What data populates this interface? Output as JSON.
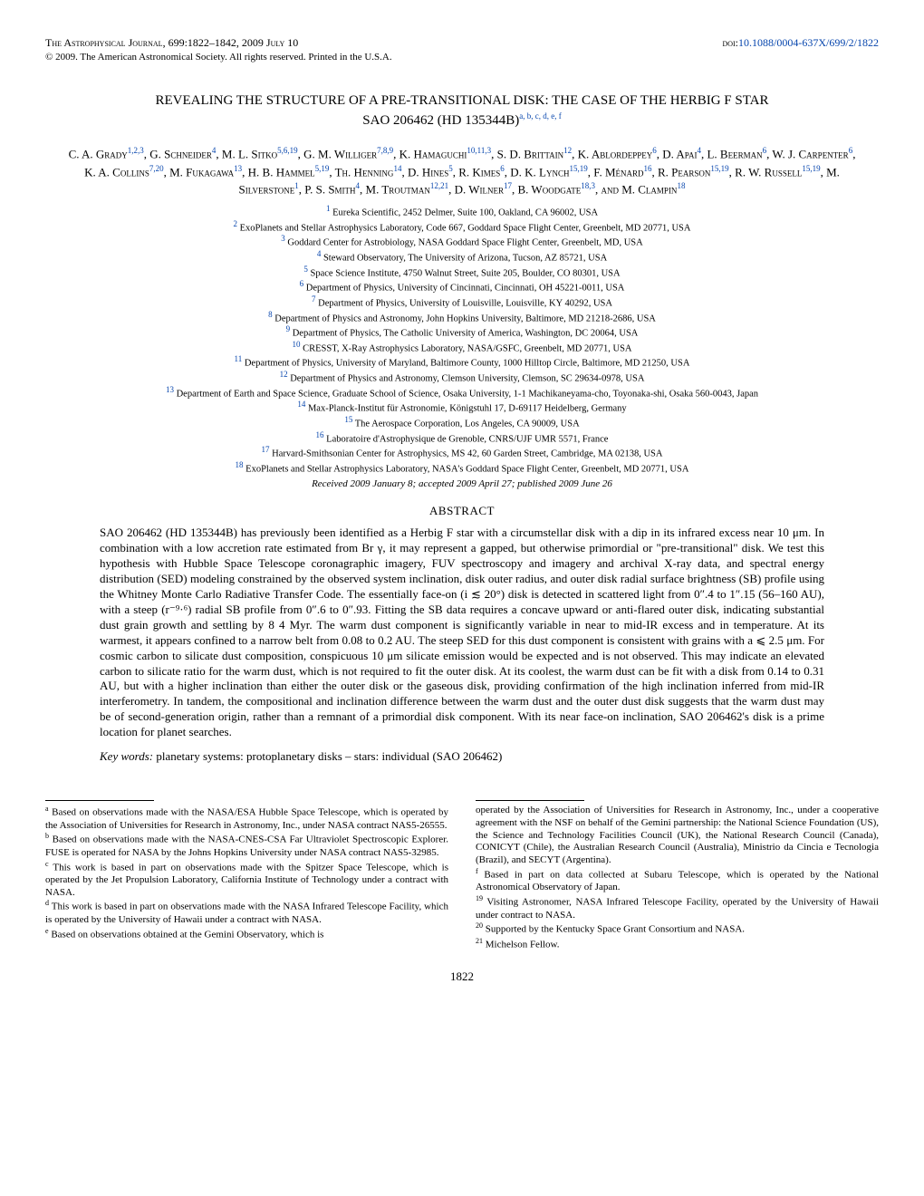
{
  "header": {
    "journal": "The Astrophysical Journal",
    "citation": ", 699:1822–1842, 2009 July 10",
    "doi_label": "doi:",
    "doi": "10.1088/0004-637X/699/2/1822",
    "copyright": "© 2009. The American Astronomical Society. All rights reserved. Printed in the U.S.A."
  },
  "title_l1": "REVEALING THE STRUCTURE OF A PRE-TRANSITIONAL DISK: THE CASE OF THE HERBIG F STAR",
  "title_l2": "SAO 206462 (HD 135344B)",
  "title_sup": "a, b, c, d, e, f",
  "authors_html": "C. A. Grady<sup class='sup'>1,2,3</sup>, G. Schneider<sup class='sup'>4</sup>, M. L. Sitko<sup class='sup'>5,6,19</sup>, G. M. Williger<sup class='sup'>7,8,9</sup>, K. Hamaguchi<sup class='sup'>10,11,3</sup>, S. D. Brittain<sup class='sup'>12</sup>, K. Ablordeppey<sup class='sup'>6</sup>, D. Apai<sup class='sup'>4</sup>, L. Beerman<sup class='sup'>6</sup>, W. J. Carpenter<sup class='sup'>6</sup>, K. A. Collins<sup class='sup'>7,20</sup>, M. Fukagawa<sup class='sup'>13</sup>, H. B. Hammel<sup class='sup'>5,19</sup>, Th. Henning<sup class='sup'>14</sup>, D. Hines<sup class='sup'>5</sup>, R. Kimes<sup class='sup'>6</sup>, D. K. Lynch<sup class='sup'>15,19</sup>, F. Ménard<sup class='sup'>16</sup>, R. Pearson<sup class='sup'>15,19</sup>, R. W. Russell<sup class='sup'>15,19</sup>, M. Silverstone<sup class='sup'>1</sup>, P. S. Smith<sup class='sup'>4</sup>, M. Troutman<sup class='sup'>12,21</sup>, D. Wilner<sup class='sup'>17</sup>, B. Woodgate<sup class='sup'>18,3</sup>, <span style='font-variant:small-caps'>and</span> M. Clampin<sup class='sup'>18</sup>",
  "affiliations": [
    "1 Eureka Scientific, 2452 Delmer, Suite 100, Oakland, CA 96002, USA",
    "2 ExoPlanets and Stellar Astrophysics Laboratory, Code 667, Goddard Space Flight Center, Greenbelt, MD 20771, USA",
    "3 Goddard Center for Astrobiology, NASA Goddard Space Flight Center, Greenbelt, MD, USA",
    "4 Steward Observatory, The University of Arizona, Tucson, AZ 85721, USA",
    "5 Space Science Institute, 4750 Walnut Street, Suite 205, Boulder, CO 80301, USA",
    "6 Department of Physics, University of Cincinnati, Cincinnati, OH 45221-0011, USA",
    "7 Department of Physics, University of Louisville, Louisville, KY 40292, USA",
    "8 Department of Physics and Astronomy, John Hopkins University, Baltimore, MD 21218-2686, USA",
    "9 Department of Physics, The Catholic University of America, Washington, DC 20064, USA",
    "10 CRESST, X-Ray Astrophysics Laboratory, NASA/GSFC, Greenbelt, MD 20771, USA",
    "11 Department of Physics, University of Maryland, Baltimore County, 1000 Hilltop Circle, Baltimore, MD 21250, USA",
    "12 Department of Physics and Astronomy, Clemson University, Clemson, SC 29634-0978, USA",
    "13 Department of Earth and Space Science, Graduate School of Science, Osaka University, 1-1 Machikaneyama-cho, Toyonaka-shi, Osaka 560-0043, Japan",
    "14 Max-Planck-Institut für Astronomie, Königstuhl 17, D-69117 Heidelberg, Germany",
    "15 The Aerospace Corporation, Los Angeles, CA 90009, USA",
    "16 Laboratoire d'Astrophysique de Grenoble, CNRS/UJF UMR 5571, France",
    "17 Harvard-Smithsonian Center for Astrophysics, MS 42, 60 Garden Street, Cambridge, MA 02138, USA",
    "18 ExoPlanets and Stellar Astrophysics Laboratory, NASA's Goddard Space Flight Center, Greenbelt, MD 20771, USA"
  ],
  "received": "Received 2009 January 8; accepted 2009 April 27; published 2009 June 26",
  "abstract_heading": "ABSTRACT",
  "abstract": "SAO 206462 (HD 135344B) has previously been identified as a Herbig F star with a circumstellar disk with a dip in its infrared excess near 10 μm. In combination with a low accretion rate estimated from Br γ, it may represent a gapped, but otherwise primordial or \"pre-transitional\" disk. We test this hypothesis with Hubble Space Telescope coronagraphic imagery, FUV spectroscopy and imagery and archival X-ray data, and spectral energy distribution (SED) modeling constrained by the observed system inclination, disk outer radius, and outer disk radial surface brightness (SB) profile using the Whitney Monte Carlo Radiative Transfer Code. The essentially face-on (i ≲ 20°) disk is detected in scattered light from 0″.4 to 1″.15 (56–160 AU), with a steep (r⁻⁹·⁶) radial SB profile from 0″.6 to 0″.93. Fitting the SB data requires a concave upward or anti-flared outer disk, indicating substantial dust grain growth and settling by 8  4 Myr. The warm dust component is significantly variable in near to mid-IR excess and in temperature. At its warmest, it appears confined to a narrow belt from 0.08 to 0.2 AU. The steep SED for this dust component is consistent with grains with a ⩽ 2.5 μm. For cosmic carbon to silicate dust composition, conspicuous 10 μm silicate emission would be expected and is not observed. This may indicate an elevated carbon to silicate ratio for the warm dust, which is not required to fit the outer disk. At its coolest, the warm dust can be fit with a disk from 0.14 to 0.31 AU, but with a higher inclination than either the outer disk or the gaseous disk, providing confirmation of the high inclination inferred from mid-IR interferometry. In tandem, the compositional and inclination difference between the warm dust and the outer dust disk suggests that the warm dust may be of second-generation origin, rather than a remnant of a primordial disk component. With its near face-on inclination, SAO 206462's disk is a prime location for planet searches.",
  "keywords_label": "Key words:",
  "keywords": "planetary systems: protoplanetary disks – stars: individual (SAO 206462)",
  "footnotes_left": [
    {
      "m": "a",
      "t": " Based on observations made with the NASA/ESA Hubble Space Telescope, which is operated by the Association of Universities for Research in Astronomy, Inc., under NASA contract NAS5-26555."
    },
    {
      "m": "b",
      "t": " Based on observations made with the NASA-CNES-CSA Far Ultraviolet Spectroscopic Explorer. FUSE is operated for NASA by the Johns Hopkins University under NASA contract NAS5-32985."
    },
    {
      "m": "c",
      "t": " This work is based in part on observations made with the Spitzer Space Telescope, which is operated by the Jet Propulsion Laboratory, California Institute of Technology under a contract with NASA."
    },
    {
      "m": "d",
      "t": " This work is based in part on observations made with the NASA Infrared Telescope Facility, which is operated by the University of Hawaii under a contract with NASA."
    },
    {
      "m": "e",
      "t": " Based on observations obtained at the Gemini Observatory, which is"
    }
  ],
  "footnotes_right": [
    {
      "m": "",
      "t": "operated by the Association of Universities for Research in Astronomy, Inc., under a cooperative agreement with the NSF on behalf of the Gemini partnership: the National Science Foundation (US), the Science and Technology Facilities Council (UK), the National Research Council (Canada), CONICYT (Chile), the Australian Research Council (Australia), Ministrio da Cincia e Tecnologia (Brazil), and SECYT (Argentina)."
    },
    {
      "m": "f",
      "t": " Based in part on data collected at Subaru Telescope, which is operated by the National Astronomical Observatory of Japan."
    },
    {
      "m": "19",
      "t": " Visiting Astronomer, NASA Infrared Telescope Facility, operated by the University of Hawaii under contract to NASA."
    },
    {
      "m": "20",
      "t": " Supported by the Kentucky Space Grant Consortium and NASA."
    },
    {
      "m": "21",
      "t": " Michelson Fellow."
    }
  ],
  "pagenum": "1822"
}
